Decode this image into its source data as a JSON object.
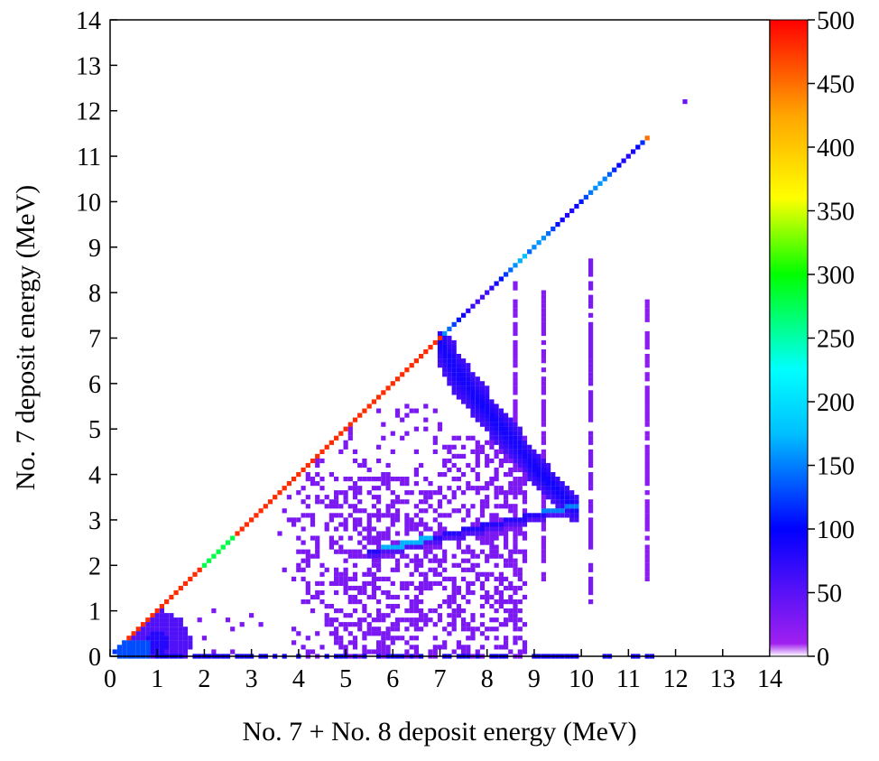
{
  "chart_data": {
    "type": "heatmap",
    "title": "",
    "xlabel": "No. 7 + No. 8 deposit energy (MeV)",
    "ylabel": "No. 7 deposit energy (MeV)",
    "xlim": [
      0,
      14
    ],
    "ylim": [
      0,
      14
    ],
    "x_ticks": [
      0,
      1,
      2,
      3,
      4,
      5,
      6,
      7,
      8,
      9,
      10,
      11,
      12,
      13,
      14
    ],
    "y_ticks": [
      0,
      1,
      2,
      3,
      4,
      5,
      6,
      7,
      8,
      9,
      10,
      11,
      12,
      13,
      14
    ],
    "colorbar": {
      "range": [
        0,
        500
      ],
      "ticks": [
        0,
        50,
        100,
        150,
        200,
        250,
        300,
        350,
        400,
        450,
        500
      ],
      "colors": [
        "#ffffff",
        "#a020f0",
        "#0000ff",
        "#00bfff",
        "#00ffff",
        "#00ff00",
        "#ffff00",
        "#ffa500",
        "#ff0000"
      ]
    },
    "features": [
      {
        "name": "diagonal",
        "from": [
          0.1,
          0.1
        ],
        "to": [
          11.4,
          11.4
        ],
        "counts_note": "x = y line, counts 50-500"
      },
      {
        "name": "low-energy-blob",
        "center": [
          1.0,
          0.3
        ],
        "counts": 60
      },
      {
        "name": "banana-band",
        "from": [
          7.0,
          6.9
        ],
        "to": [
          9.9,
          3.2
        ],
        "counts": 70
      },
      {
        "name": "lower-band",
        "from": [
          5.5,
          2.3
        ],
        "to": [
          9.9,
          3.3
        ],
        "counts": 150
      },
      {
        "name": "scatter-region",
        "x_range": [
          3.5,
          9.0
        ],
        "y_range": [
          0,
          5
        ],
        "counts": 25
      },
      {
        "name": "vertical-line",
        "x": 10.2,
        "y_range": [
          1.2,
          8.8
        ],
        "counts": 30
      },
      {
        "name": "vertical-line",
        "x": 9.2,
        "y_range": [
          1.5,
          8.0
        ],
        "counts": 25
      },
      {
        "name": "vertical-line",
        "x": 8.6,
        "y_range": [
          0.6,
          8.2
        ],
        "counts": 25
      },
      {
        "name": "vertical-line",
        "x": 11.4,
        "y_range": [
          1.7,
          7.8
        ],
        "counts": 20
      },
      {
        "name": "isolated-point",
        "x": 12.2,
        "y": 12.2,
        "counts": 40
      },
      {
        "name": "isolated-point",
        "x": 11.4,
        "y": 11.4,
        "counts": 450
      }
    ]
  }
}
